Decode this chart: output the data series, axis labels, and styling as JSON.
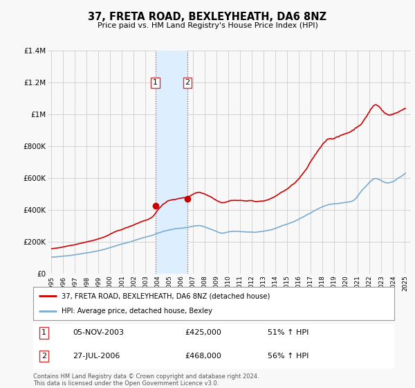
{
  "title": "37, FRETA ROAD, BEXLEYHEATH, DA6 8NZ",
  "subtitle": "Price paid vs. HM Land Registry's House Price Index (HPI)",
  "legend_line1": "37, FRETA ROAD, BEXLEYHEATH, DA6 8NZ (detached house)",
  "legend_line2": "HPI: Average price, detached house, Bexley",
  "footer": "Contains HM Land Registry data © Crown copyright and database right 2024.\nThis data is licensed under the Open Government Licence v3.0.",
  "sale1_label": "1",
  "sale1_date": "05-NOV-2003",
  "sale1_price": "£425,000",
  "sale1_hpi": "51% ↑ HPI",
  "sale1_year": 2003.833,
  "sale1_value": 425000,
  "sale2_label": "2",
  "sale2_date": "27-JUL-2006",
  "sale2_price": "£468,000",
  "sale2_hpi": "56% ↑ HPI",
  "sale2_year": 2006.556,
  "sale2_value": 468000,
  "red_color": "#cc0000",
  "blue_color": "#7aabcf",
  "shade_color": "#ddeeff",
  "ylim": [
    0,
    1400000
  ],
  "xlim": [
    1994.7,
    2025.5
  ],
  "background_color": "#f8f8f8",
  "grid_color": "#cccccc",
  "hpi_annual": [
    1995,
    1996,
    1997,
    1998,
    1999,
    2000,
    2001,
    2002,
    2003,
    2004,
    2005,
    2006,
    2007,
    2008,
    2009,
    2010,
    2011,
    2012,
    2013,
    2014,
    2015,
    2016,
    2017,
    2018,
    2019,
    2020,
    2021,
    2022,
    2023,
    2024,
    2025
  ],
  "hpi_vals": [
    105000,
    113000,
    125000,
    138000,
    155000,
    178000,
    198000,
    222000,
    244000,
    270000,
    285000,
    295000,
    308000,
    285000,
    258000,
    268000,
    265000,
    262000,
    272000,
    298000,
    325000,
    360000,
    405000,
    435000,
    445000,
    455000,
    530000,
    590000,
    565000,
    600000,
    660000
  ],
  "red_annual": [
    1995,
    1996,
    1997,
    1998,
    1999,
    2000,
    2001,
    2002,
    2003,
    2004,
    2005,
    2006,
    2007,
    2008,
    2009,
    2010,
    2011,
    2012,
    2013,
    2014,
    2015,
    2016,
    2017,
    2018,
    2019,
    2020,
    2021,
    2022,
    2023,
    2024,
    2025
  ],
  "red_vals": [
    160000,
    172000,
    188000,
    205000,
    228000,
    258000,
    285000,
    318000,
    350000,
    435000,
    465000,
    475000,
    510000,
    485000,
    455000,
    472000,
    468000,
    465000,
    478000,
    520000,
    570000,
    650000,
    760000,
    855000,
    875000,
    910000,
    980000,
    1080000,
    1020000,
    1040000,
    1090000
  ]
}
